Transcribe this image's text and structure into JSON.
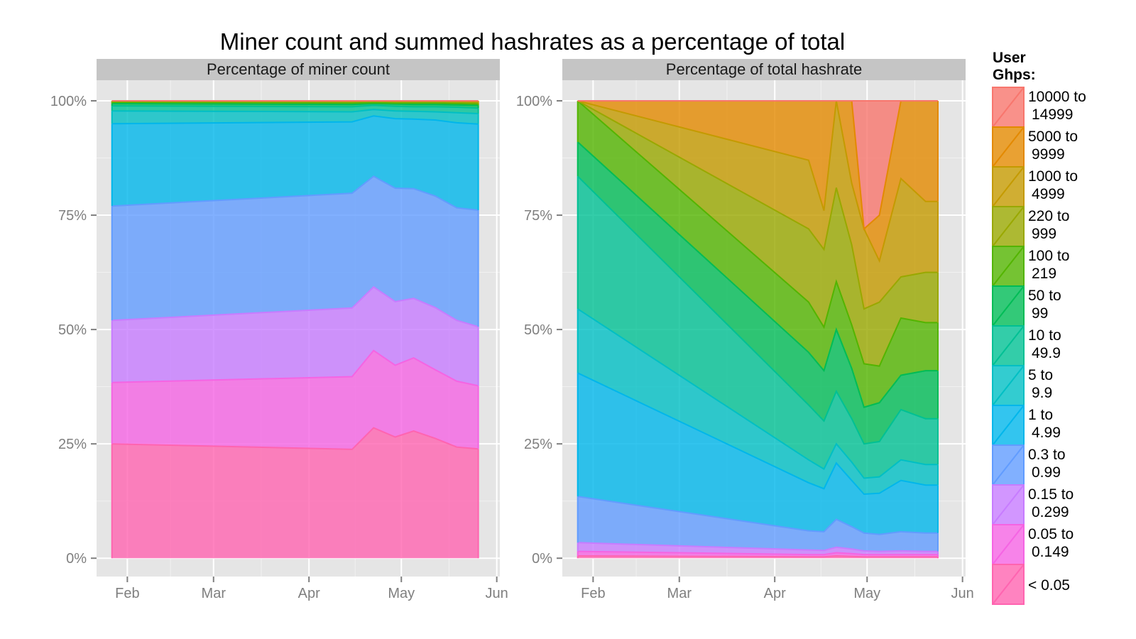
{
  "chart_data": {
    "type": "area",
    "title": "Miner count and summed hashrates as a percentage of total",
    "legend": {
      "title_lines": [
        "User",
        "Ghps:"
      ],
      "position": "right",
      "entries": [
        {
          "lines": [
            "10000 to",
            "14999"
          ],
          "color": "#F8766D"
        },
        {
          "lines": [
            "5000 to",
            "9999"
          ],
          "color": "#E38900"
        },
        {
          "lines": [
            "1000 to",
            "4999"
          ],
          "color": "#C49A00"
        },
        {
          "lines": [
            "220 to",
            "999"
          ],
          "color": "#99A800"
        },
        {
          "lines": [
            "100 to",
            "219"
          ],
          "color": "#53B400"
        },
        {
          "lines": [
            "50 to",
            "99"
          ],
          "color": "#00BC56"
        },
        {
          "lines": [
            "10 to",
            "49.9"
          ],
          "color": "#00C094"
        },
        {
          "lines": [
            "5 to",
            "9.9"
          ],
          "color": "#00BFC4"
        },
        {
          "lines": [
            "1 to",
            "4.99"
          ],
          "color": "#00B6EB"
        },
        {
          "lines": [
            "0.3 to",
            "0.99"
          ],
          "color": "#619CFF"
        },
        {
          "lines": [
            "0.15 to",
            "0.299"
          ],
          "color": "#C77CFF"
        },
        {
          "lines": [
            "0.05 to",
            "0.149"
          ],
          "color": "#F564E3"
        },
        {
          "lines": [
            "< 0.05"
          ],
          "color": "#FF64B0"
        }
      ]
    },
    "x_axis": {
      "ticks": [
        "Feb",
        "Mar",
        "Apr",
        "May",
        "Jun"
      ],
      "tick_days": [
        32,
        60,
        91,
        121,
        152
      ],
      "range_days": [
        22,
        153
      ]
    },
    "y_axis": {
      "ticks": [
        "0%",
        "25%",
        "50%",
        "75%",
        "100%"
      ],
      "tick_values": [
        0,
        25,
        50,
        75,
        100
      ],
      "range": [
        -4,
        104.5
      ]
    },
    "grid": true,
    "panels": [
      {
        "label": "Percentage of miner count",
        "x_days": [
          27,
          105,
          112,
          119,
          125,
          132,
          139,
          146
        ],
        "cumulative_boundaries": [
          [
            25.0,
            23.8,
            28.5,
            26.5,
            27.8,
            26.2,
            24.3,
            23.9
          ],
          [
            38.4,
            39.7,
            45.4,
            42.2,
            43.8,
            41.2,
            38.7,
            37.7
          ],
          [
            52.0,
            54.7,
            59.3,
            56.1,
            56.8,
            54.8,
            52.0,
            50.6
          ],
          [
            77.0,
            79.8,
            83.5,
            80.9,
            80.8,
            79.2,
            76.6,
            76.1
          ],
          [
            95.0,
            95.4,
            96.7,
            96.1,
            96.0,
            95.8,
            95.2,
            94.9
          ],
          [
            97.8,
            97.6,
            98.1,
            97.8,
            97.7,
            97.6,
            97.4,
            97.2
          ],
          [
            98.9,
            98.7,
            99.0,
            98.8,
            98.7,
            98.7,
            98.6,
            98.4
          ],
          [
            99.4,
            99.2,
            99.4,
            99.3,
            99.2,
            99.2,
            99.1,
            99.0
          ],
          [
            99.7,
            99.5,
            99.6,
            99.5,
            99.5,
            99.5,
            99.4,
            99.3
          ],
          [
            99.9,
            99.8,
            99.9,
            99.8,
            99.8,
            99.8,
            99.7,
            99.6
          ],
          [
            100,
            99.9,
            100,
            99.9,
            99.9,
            99.9,
            99.9,
            99.8
          ],
          [
            100,
            100,
            100,
            100,
            100,
            100,
            100,
            100
          ],
          [
            100,
            100,
            100,
            100,
            100,
            100,
            100,
            100
          ]
        ]
      },
      {
        "label": "Percentage of total hashrate",
        "x_days": [
          27,
          102,
          107,
          111,
          116,
          120,
          125,
          132,
          140,
          144
        ],
        "cumulative_boundaries": [
          [
            0.5,
            0.3,
            0.3,
            0.5,
            0.4,
            0.3,
            0.3,
            0.3,
            0.3,
            0.3
          ],
          [
            1.5,
            0.8,
            0.8,
            1.2,
            1.0,
            0.8,
            0.8,
            0.8,
            0.8,
            0.8
          ],
          [
            3.4,
            1.8,
            1.7,
            2.4,
            2.0,
            1.6,
            1.5,
            1.6,
            1.5,
            1.5
          ],
          [
            13.5,
            6.0,
            5.8,
            8.5,
            6.9,
            5.5,
            5.2,
            5.8,
            5.5,
            5.5
          ],
          [
            40.5,
            16.5,
            15.2,
            20.8,
            17.0,
            14.0,
            14.2,
            17.0,
            16.0,
            16.0
          ],
          [
            54.5,
            21.5,
            19.5,
            25.0,
            21.0,
            17.5,
            17.8,
            21.5,
            20.5,
            20.5
          ],
          [
            83.5,
            33.5,
            30.0,
            36.5,
            30.5,
            25.0,
            25.5,
            32.5,
            30.5,
            30.5
          ],
          [
            91.0,
            45.0,
            41.0,
            50.0,
            41.5,
            33.0,
            34.0,
            40.0,
            41.0,
            41.0
          ],
          [
            100,
            56.0,
            50.5,
            60.5,
            51.0,
            42.5,
            42.0,
            52.5,
            51.5,
            51.5
          ],
          [
            100,
            72.0,
            67.5,
            81.0,
            68.5,
            54.5,
            56.0,
            61.5,
            62.5,
            62.5
          ],
          [
            100,
            87.0,
            76.0,
            100,
            82.0,
            72.0,
            65.0,
            83.0,
            78.0,
            78.0
          ],
          [
            100,
            100,
            100,
            100,
            100,
            72.0,
            75.0,
            100,
            100,
            100
          ],
          [
            100,
            100,
            100,
            100,
            100,
            100,
            100,
            100,
            100,
            100
          ]
        ]
      }
    ]
  }
}
